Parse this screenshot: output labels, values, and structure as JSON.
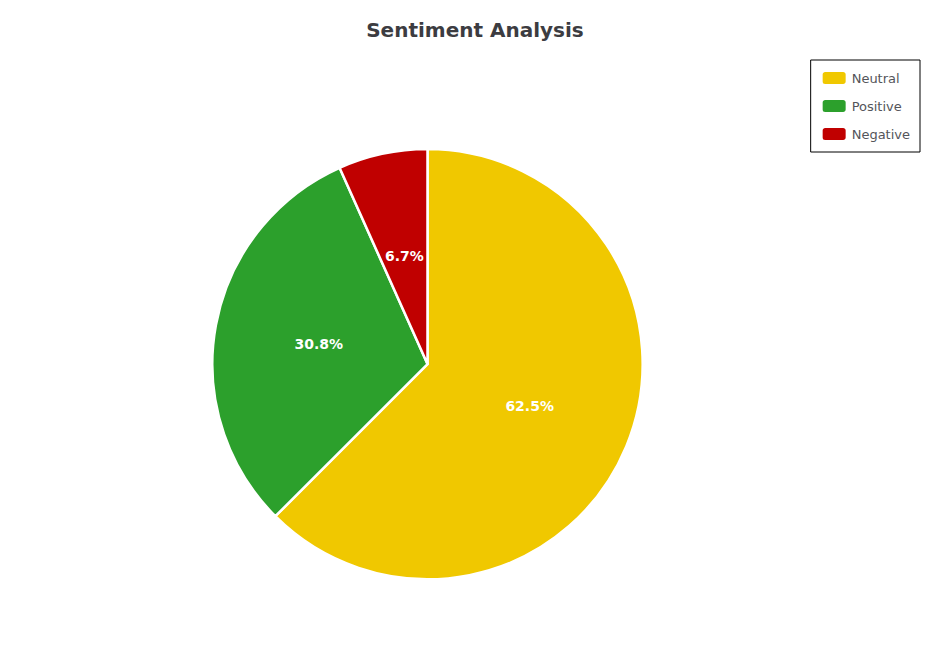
{
  "chart_data": {
    "type": "pie",
    "title": "Sentiment Analysis",
    "categories": [
      "Neutral",
      "Positive",
      "Negative"
    ],
    "values": [
      62.5,
      30.8,
      6.7
    ],
    "value_labels": [
      "62.5%",
      "30.8%",
      "6.7%"
    ],
    "colors": [
      "#f0c800",
      "#2ca02c",
      "#c00000"
    ],
    "data_labels": true,
    "legend": "upper right"
  }
}
